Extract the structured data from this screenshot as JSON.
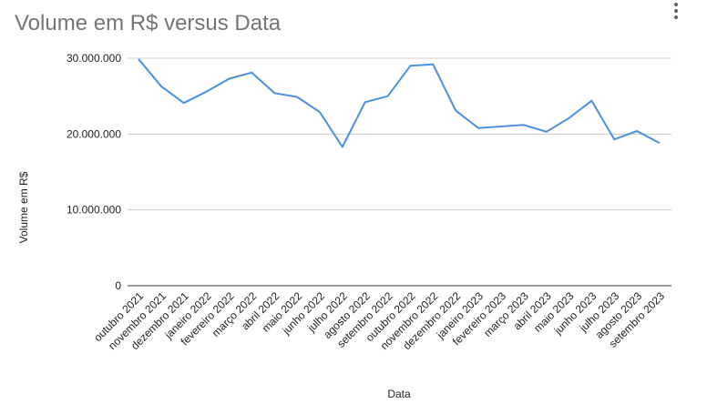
{
  "chart_data": {
    "type": "line",
    "title": "Volume em R$ versus Data",
    "xlabel": "Data",
    "ylabel": "Volume em R$",
    "ylim": [
      0,
      30000000
    ],
    "grid": true,
    "legend": "none",
    "y_ticks": [
      "0",
      "10.000.000",
      "20.000.000",
      "30.000.000"
    ],
    "y_tick_values": [
      0,
      10000000,
      20000000,
      30000000
    ],
    "categories": [
      "outubro 2021",
      "novembro 2021",
      "dezembro 2021",
      "janeiro 2022",
      "fevereiro 2022",
      "março 2022",
      "abril 2022",
      "maio 2022",
      "junho 2022",
      "julho 2022",
      "agosto 2022",
      "setembro 2022",
      "outubro 2022",
      "novembro 2022",
      "dezembro 2022",
      "janeiro 2023",
      "fevereiro 2023",
      "março 2023",
      "abril 2023",
      "maio 2023",
      "junho 2023",
      "julho 2023",
      "agosto 2023",
      "setembro 2023"
    ],
    "series": [
      {
        "values": [
          29900000,
          26300000,
          24100000,
          25600000,
          27300000,
          28100000,
          25400000,
          24900000,
          22900000,
          18300000,
          24200000,
          25000000,
          29000000,
          29200000,
          23100000,
          20800000,
          21000000,
          21200000,
          20300000,
          22100000,
          24400000,
          19300000,
          20400000,
          18800000
        ],
        "color": "#4a90e2"
      }
    ]
  },
  "menu": {
    "icon": "more-vert-icon"
  }
}
